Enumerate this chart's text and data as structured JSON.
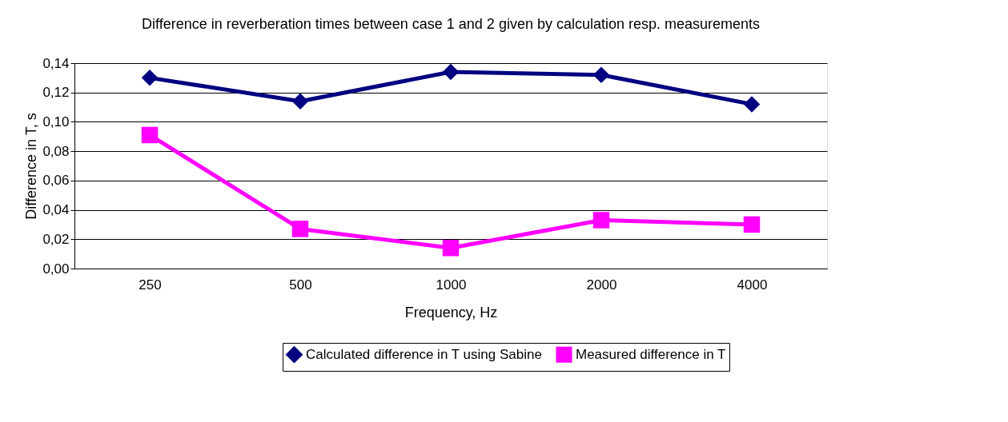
{
  "chart_data": {
    "type": "line",
    "title": "Difference in reverberation times between case 1 and 2 given by calculation resp. measurements",
    "xlabel": "Frequency, Hz",
    "ylabel": "Difference in T, s",
    "categories": [
      "250",
      "500",
      "1000",
      "2000",
      "4000"
    ],
    "series": [
      {
        "name": "Calculated difference in T using Sabine",
        "color": "#000080",
        "marker": "diamond",
        "values": [
          0.13,
          0.114,
          0.134,
          0.132,
          0.112
        ]
      },
      {
        "name": "Measured difference in T",
        "color": "#ff00ff",
        "marker": "square",
        "values": [
          0.091,
          0.027,
          0.014,
          0.033,
          0.03
        ]
      }
    ],
    "ylim": [
      0,
      0.14
    ],
    "yticks": [
      {
        "value": 0,
        "label": "0,00"
      },
      {
        "value": 0.02,
        "label": "0,02"
      },
      {
        "value": 0.04,
        "label": "0,04"
      },
      {
        "value": 0.06,
        "label": "0,06"
      },
      {
        "value": 0.08,
        "label": "0,08"
      },
      {
        "value": 0.1,
        "label": "0,10"
      },
      {
        "value": 0.12,
        "label": "0,12"
      },
      {
        "value": 0.14,
        "label": "0,14"
      }
    ],
    "grid": "y",
    "legend": "bottom",
    "line_style": "solid"
  }
}
